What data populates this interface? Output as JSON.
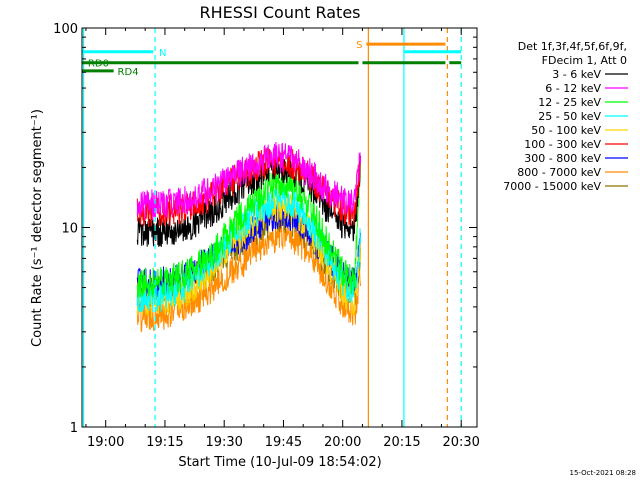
{
  "chart_data": {
    "type": "line",
    "title": "RHESSI Count Rates",
    "xlabel": "Start Time (10-Jul-09 18:54:02)",
    "ylabel": "Count Rate (s⁻¹ detector segment⁻¹)",
    "xticks": [
      {
        "t": 6,
        "label": "19:00"
      },
      {
        "t": 21,
        "label": "19:15"
      },
      {
        "t": 36,
        "label": "19:30"
      },
      {
        "t": 51,
        "label": "19:45"
      },
      {
        "t": 66,
        "label": "20:00"
      },
      {
        "t": 81,
        "label": "20:15"
      },
      {
        "t": 96,
        "label": "20:30"
      }
    ],
    "x_units": "minutes after 18:54:02",
    "xlim": [
      0,
      100
    ],
    "yscale": "log",
    "ylim": [
      1,
      100
    ],
    "yticks": [
      {
        "v": 1,
        "label": "1"
      },
      {
        "v": 10,
        "label": "10"
      },
      {
        "v": 100,
        "label": "100"
      }
    ],
    "legend_header": [
      "Det 1f,3f,4f,5f,6f,9f,",
      "FDecim 1, Att 0"
    ],
    "legend_position": "right",
    "series": [
      {
        "name": "3 - 6 keV",
        "color": "#000000",
        "x": [
          14,
          20,
          26,
          32,
          38,
          44,
          48,
          51,
          54,
          58,
          62,
          66,
          69,
          70.5
        ],
        "y": [
          9.5,
          9.5,
          10.0,
          11.5,
          14.5,
          18.0,
          19.5,
          19.8,
          19.0,
          16.0,
          12.5,
          10.5,
          10.0,
          20.0
        ]
      },
      {
        "name": "6 - 12 keV",
        "color": "#ff00ff",
        "x": [
          14,
          20,
          26,
          32,
          38,
          44,
          48,
          51,
          54,
          58,
          62,
          66,
          69,
          70.5
        ],
        "y": [
          13.0,
          13.0,
          13.5,
          15.0,
          18.0,
          21.0,
          22.5,
          22.5,
          21.5,
          18.5,
          15.5,
          13.5,
          13.0,
          24.0
        ]
      },
      {
        "name": "12 - 25 keV",
        "color": "#00ff00",
        "x": [
          14,
          20,
          26,
          32,
          38,
          44,
          48,
          51,
          54,
          58,
          62,
          66,
          69,
          70.5
        ],
        "y": [
          5.3,
          5.3,
          5.8,
          7.0,
          10.0,
          14.0,
          16.5,
          17.0,
          16.0,
          12.5,
          8.5,
          6.0,
          5.3,
          20.0
        ]
      },
      {
        "name": "25 - 50 keV",
        "color": "#00ffff",
        "x": [
          14,
          20,
          26,
          32,
          38,
          44,
          48,
          51,
          54,
          58,
          62,
          66,
          69,
          70.5
        ],
        "y": [
          4.5,
          4.5,
          5.0,
          6.5,
          9.0,
          12.0,
          13.5,
          13.8,
          13.0,
          10.5,
          7.5,
          5.3,
          4.7,
          9.0
        ]
      },
      {
        "name": "50 - 100 keV",
        "color": "#ffd700",
        "x": [
          14,
          20,
          26,
          32,
          38,
          44,
          48,
          51,
          54,
          58,
          62,
          66,
          69,
          70.5
        ],
        "y": [
          4.2,
          4.2,
          4.6,
          6.0,
          8.5,
          11.0,
          12.5,
          12.8,
          12.0,
          9.5,
          6.8,
          4.8,
          4.2,
          8.0
        ]
      },
      {
        "name": "100 - 300 keV",
        "color": "#ff0000",
        "x": [
          14,
          20,
          26,
          32,
          38,
          44,
          48,
          51,
          54,
          58,
          62,
          66,
          69,
          70.5
        ],
        "y": [
          12.0,
          12.0,
          12.5,
          14.0,
          17.0,
          20.0,
          21.5,
          21.5,
          20.5,
          17.5,
          14.5,
          12.5,
          12.0,
          22.0
        ]
      },
      {
        "name": "300 - 800 keV",
        "color": "#0000ff",
        "x": [
          14,
          20,
          26,
          32,
          38,
          44,
          48,
          51,
          54,
          58,
          62,
          66,
          69,
          70.5
        ],
        "y": [
          5.2,
          5.3,
          5.7,
          6.8,
          8.3,
          10.0,
          11.3,
          11.7,
          11.2,
          9.3,
          7.3,
          5.8,
          5.2,
          9.0
        ]
      },
      {
        "name": "800 - 7000 keV",
        "color": "#ff8c00",
        "x": [
          14,
          20,
          26,
          32,
          38,
          44,
          48,
          51,
          54,
          58,
          62,
          66,
          69,
          70.5
        ],
        "y": [
          3.6,
          3.6,
          4.0,
          4.8,
          6.0,
          7.7,
          8.8,
          9.1,
          8.7,
          7.2,
          5.5,
          4.2,
          3.6,
          6.0
        ]
      },
      {
        "name": "7000 - 15000 keV",
        "color": "#8b7500",
        "x": [
          14,
          20,
          26,
          32,
          38,
          44,
          48,
          51,
          54,
          58,
          62,
          66,
          69,
          70.5
        ],
        "y": [
          4.8,
          4.8,
          5.2,
          6.2,
          7.8,
          9.5,
          10.8,
          11.0,
          10.5,
          8.7,
          6.6,
          5.1,
          4.7,
          7.0
        ]
      }
    ],
    "flags": [
      {
        "name": "N",
        "color": "#00ffff",
        "level": 76,
        "segments": [
          [
            0,
            18
          ],
          [
            81.5,
            96
          ]
        ]
      },
      {
        "name": "S",
        "color": "#ff8c00",
        "level": 83,
        "segments": [
          [
            72,
            92
          ]
        ]
      },
      {
        "name": "RD0",
        "color": "#008000",
        "level": 67,
        "segments": [
          [
            0,
            70
          ],
          [
            71,
            92
          ],
          [
            93,
            96
          ]
        ]
      },
      {
        "name": "RD4",
        "color": "#008000",
        "level": 61,
        "segments": [
          [
            0,
            8
          ]
        ]
      }
    ],
    "vlines": [
      {
        "t": 0.4,
        "color": "#00ffff",
        "style": "solid"
      },
      {
        "t": 18.5,
        "color": "#00ffff",
        "style": "dashed"
      },
      {
        "t": 72.5,
        "color": "#ff8c00",
        "style": "solid"
      },
      {
        "t": 81.5,
        "color": "#00ffff",
        "style": "solid"
      },
      {
        "t": 92.5,
        "color": "#ff8c00",
        "style": "dashed"
      },
      {
        "t": 96,
        "color": "#00ffff",
        "style": "dashed"
      }
    ],
    "footer": "15-Oct-2021 08:28"
  }
}
